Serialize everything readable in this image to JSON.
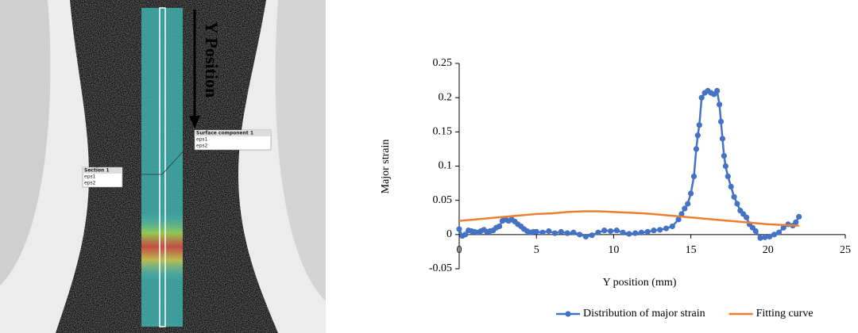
{
  "image": {
    "arrow_label": "Y Position",
    "callouts": [
      {
        "title": "Section 1",
        "rows": [
          "eps1",
          "eps2"
        ]
      },
      {
        "title": "Surface component 1",
        "rows": [
          "eps1",
          "eps2"
        ]
      }
    ]
  },
  "chart_data": {
    "type": "line",
    "ylabel": "Major strain",
    "xlabel": "Y position (mm)",
    "xlim": [
      0,
      25
    ],
    "xticks": [
      0,
      5,
      10,
      15,
      20,
      25
    ],
    "ylim": [
      -0.05,
      0.25
    ],
    "yticks": [
      -0.05,
      0,
      0.05,
      0.1,
      0.15,
      0.2,
      0.25
    ],
    "grid": false,
    "legend": "bottom",
    "series": [
      {
        "name": "Distribution of major strain",
        "color": "#4472c4",
        "markers": true,
        "x": [
          0,
          0.2,
          0.4,
          0.6,
          0.8,
          1.0,
          1.2,
          1.4,
          1.6,
          1.8,
          2.0,
          2.2,
          2.4,
          2.6,
          2.8,
          3.0,
          3.2,
          3.4,
          3.6,
          3.8,
          4.0,
          4.2,
          4.4,
          4.6,
          4.8,
          5.0,
          5.4,
          5.8,
          6.2,
          6.6,
          7.0,
          7.4,
          7.8,
          8.2,
          8.6,
          9.0,
          9.4,
          9.8,
          10.2,
          10.6,
          11.0,
          11.4,
          11.8,
          12.2,
          12.6,
          13.0,
          13.4,
          13.8,
          14.2,
          14.4,
          14.6,
          14.8,
          15.0,
          15.2,
          15.35,
          15.45,
          15.55,
          15.7,
          15.9,
          16.1,
          16.3,
          16.5,
          16.7,
          16.85,
          16.95,
          17.05,
          17.15,
          17.25,
          17.4,
          17.6,
          17.8,
          18.0,
          18.2,
          18.4,
          18.6,
          18.8,
          19.0,
          19.2,
          19.5,
          19.8,
          20.1,
          20.4,
          20.7,
          21.0,
          21.3,
          21.6,
          21.8,
          22.0
        ],
        "values": [
          0.008,
          -0.002,
          0.0,
          0.006,
          0.005,
          0.004,
          0.003,
          0.005,
          0.007,
          0.004,
          0.005,
          0.006,
          0.01,
          0.012,
          0.02,
          0.022,
          0.02,
          0.022,
          0.019,
          0.015,
          0.012,
          0.008,
          0.005,
          0.003,
          0.004,
          0.004,
          0.003,
          0.005,
          0.002,
          0.004,
          0.002,
          0.003,
          0.0,
          -0.003,
          -0.001,
          0.003,
          0.006,
          0.005,
          0.006,
          0.003,
          0.001,
          0.002,
          0.003,
          0.004,
          0.006,
          0.007,
          0.009,
          0.012,
          0.022,
          0.03,
          0.038,
          0.045,
          0.06,
          0.085,
          0.125,
          0.145,
          0.16,
          0.2,
          0.207,
          0.21,
          0.207,
          0.205,
          0.21,
          0.19,
          0.165,
          0.14,
          0.115,
          0.1,
          0.085,
          0.07,
          0.055,
          0.045,
          0.035,
          0.03,
          0.025,
          0.015,
          0.01,
          0.005,
          -0.005,
          -0.004,
          -0.003,
          0.0,
          0.003,
          0.01,
          0.015,
          0.013,
          0.018,
          0.026
        ]
      },
      {
        "name": "Fitting curve",
        "color": "#ed7d31",
        "markers": false,
        "x": [
          0,
          1,
          2,
          3,
          4,
          5,
          6,
          7,
          8,
          9,
          10,
          11,
          12,
          13,
          14,
          15,
          16,
          17,
          18,
          19,
          20,
          21,
          22
        ],
        "values": [
          0.02,
          0.022,
          0.024,
          0.026,
          0.028,
          0.03,
          0.031,
          0.033,
          0.034,
          0.034,
          0.033,
          0.032,
          0.031,
          0.029,
          0.027,
          0.025,
          0.023,
          0.021,
          0.019,
          0.017,
          0.015,
          0.014,
          0.013
        ]
      }
    ]
  }
}
